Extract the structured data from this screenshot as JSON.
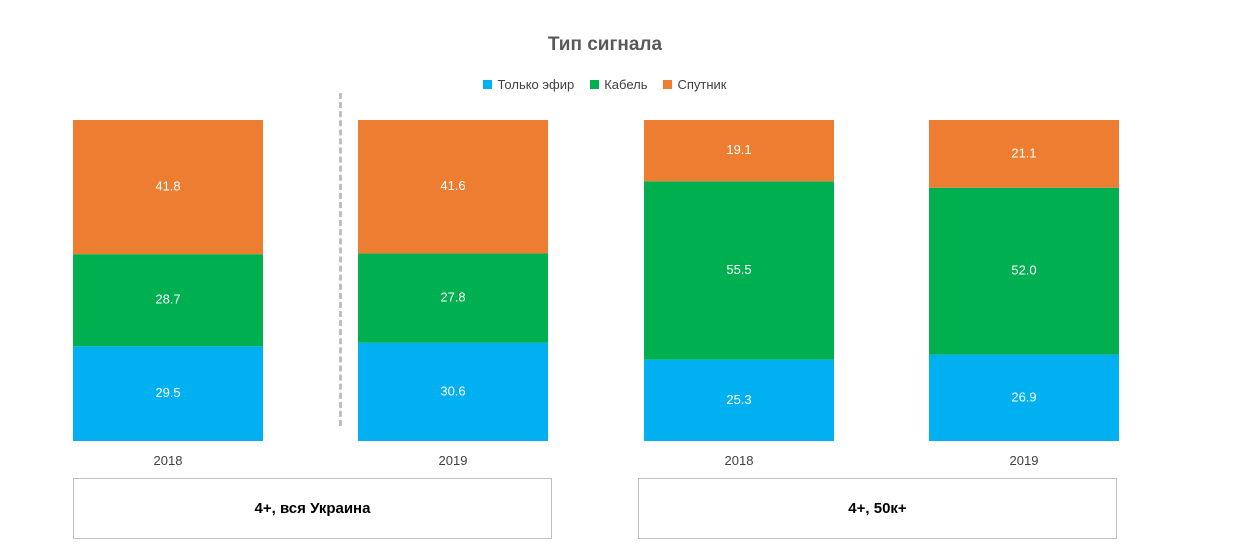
{
  "chart_data": {
    "type": "bar",
    "stacked": true,
    "title": "Тип сигнала",
    "series_names": [
      "Только эфир",
      "Кабель",
      "Спутник"
    ],
    "colors": [
      "#00b0f0",
      "#00b050",
      "#ed7d31"
    ],
    "groups": [
      {
        "label": "4+, вся Украина",
        "bars": [
          {
            "x": "2018",
            "values": [
              29.5,
              28.7,
              41.8
            ],
            "labels": [
              "29.5",
              "28.7",
              "41.8"
            ]
          },
          {
            "x": "2019",
            "values": [
              30.6,
              27.8,
              41.6
            ],
            "labels": [
              "30.6",
              "27.8",
              "41.6"
            ]
          }
        ]
      },
      {
        "label": "4+, 50к+",
        "bars": [
          {
            "x": "2018",
            "values": [
              25.3,
              55.5,
              19.1
            ],
            "labels": [
              "25.3",
              "55.5",
              "19.1"
            ]
          },
          {
            "x": "2019",
            "values": [
              26.9,
              52.0,
              21.1
            ],
            "labels": [
              "26.9",
              "52.0",
              "21.1"
            ]
          }
        ]
      }
    ],
    "legend_position": "top",
    "grid": false,
    "ylim": [
      0,
      100
    ]
  }
}
